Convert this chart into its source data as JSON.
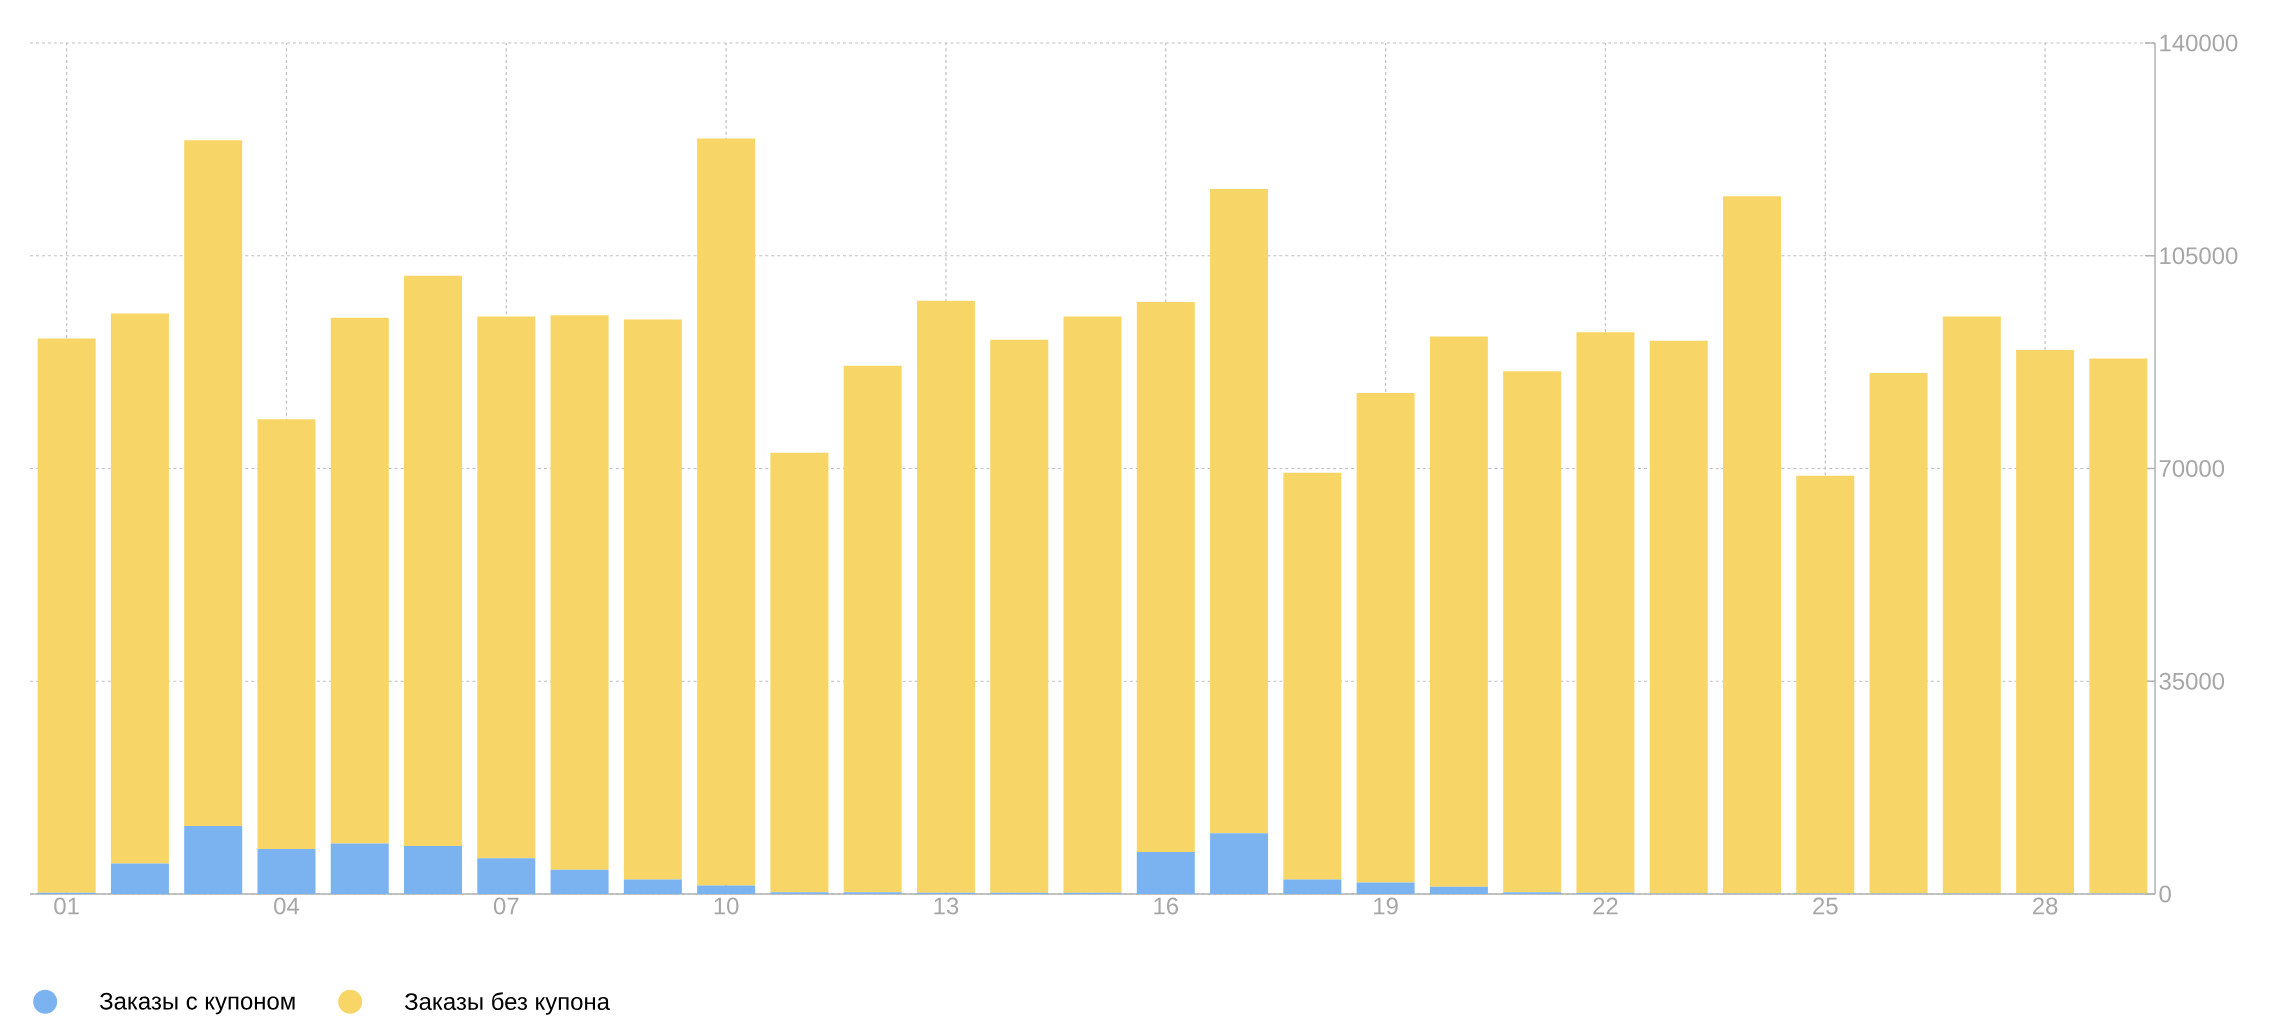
{
  "chart_data": {
    "type": "bar",
    "stacked": true,
    "categories": [
      "01",
      null,
      null,
      "04",
      null,
      null,
      "07",
      null,
      null,
      "10",
      null,
      null,
      "13",
      null,
      null,
      "16",
      null,
      null,
      "19",
      null,
      null,
      "22",
      null,
      null,
      "25",
      null,
      null,
      "28",
      null
    ],
    "series": [
      {
        "name": "Заказы с купоном",
        "color": "#7ab3f0",
        "values": [
          200,
          5000,
          11200,
          7400,
          8300,
          7900,
          5900,
          4000,
          2400,
          1400,
          300,
          300,
          200,
          200,
          200,
          6900,
          10000,
          2400,
          1900,
          1200,
          300,
          200,
          100,
          100,
          100,
          100,
          100,
          100,
          100
        ]
      },
      {
        "name": "Заказы без купона",
        "color": "#f7d667",
        "values": [
          91200,
          90500,
          112800,
          70700,
          86500,
          93800,
          89100,
          91200,
          92100,
          122900,
          72300,
          86600,
          97400,
          91000,
          94800,
          90500,
          106000,
          66900,
          80500,
          90500,
          85700,
          92200,
          90900,
          114700,
          68700,
          85600,
          94900,
          89400,
          88000
        ]
      }
    ],
    "ylim": [
      0,
      140000
    ],
    "yticks": [
      0,
      35000,
      70000,
      105000,
      140000
    ],
    "grid": true,
    "legend": "bottom left"
  }
}
